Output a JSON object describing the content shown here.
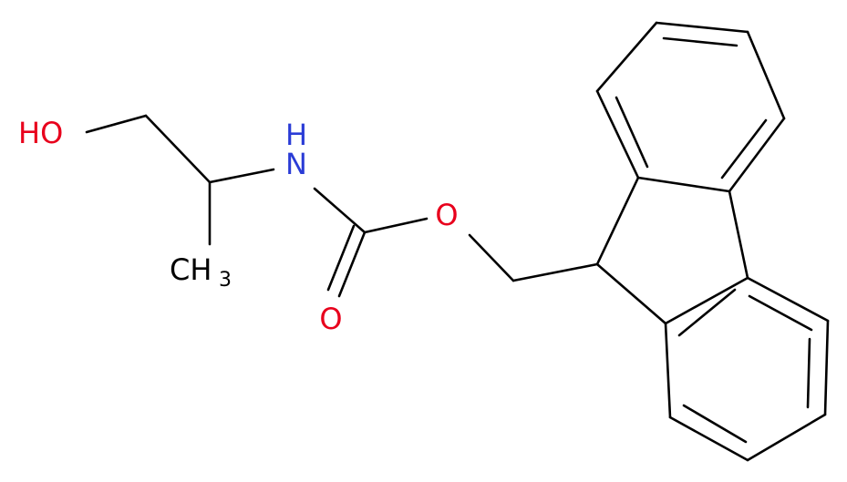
{
  "atoms": [
    {
      "label": "HO"
    },
    {
      "label": "N",
      "hydrogen": "H"
    },
    {
      "label": "O"
    },
    {
      "label": "O"
    },
    {
      "label": "CH",
      "subscript": "3"
    }
  ]
}
